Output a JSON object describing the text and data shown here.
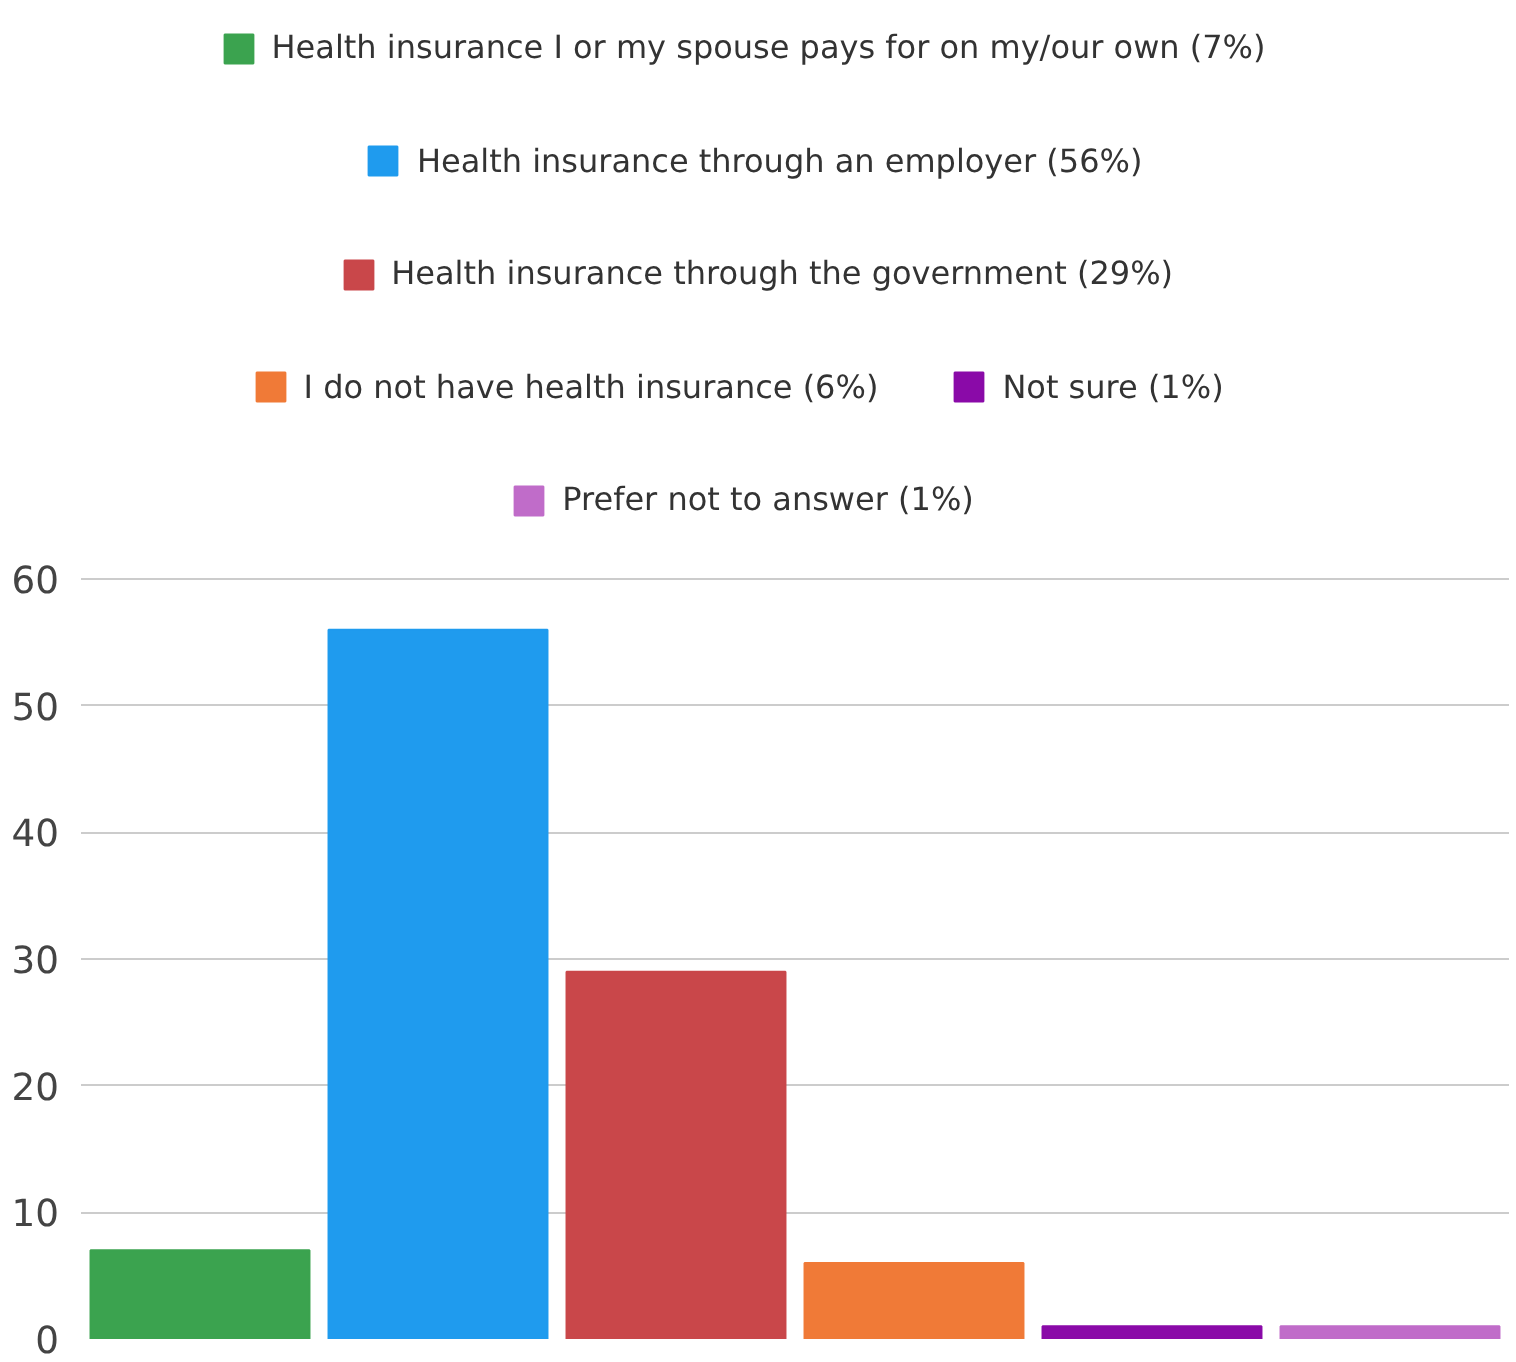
{
  "chart_data": {
    "type": "bar",
    "stacked": true,
    "categories": [
      null,
      null,
      null,
      null,
      null,
      null
    ],
    "series": [
      {
        "name": "Health insurance I or my spouse pays for on my/our own (7%)",
        "color": "#3ba34f",
        "values": [
          7,
          null,
          null,
          null,
          null,
          null
        ]
      },
      {
        "name": "Health insurance through an employer (56%)",
        "color": "#1f9bee",
        "values": [
          null,
          56,
          null,
          null,
          null,
          null
        ]
      },
      {
        "name": "Health insurance through the government (29%)",
        "color": "#c9474a",
        "values": [
          null,
          null,
          29,
          null,
          null,
          null
        ]
      },
      {
        "name": "I do not have health insurance (6%)",
        "color": "#f07a37",
        "values": [
          null,
          null,
          null,
          6,
          null,
          null
        ]
      },
      {
        "name": "Not sure (1%)",
        "color": "#8a0aa8",
        "values": [
          null,
          null,
          null,
          null,
          1,
          null
        ]
      },
      {
        "name": "Prefer not to answer (1%)",
        "color": "#c06cc9",
        "values": [
          null,
          null,
          null,
          null,
          null,
          1
        ]
      }
    ],
    "ylim": [
      0,
      60
    ],
    "yticks": [
      0,
      10,
      20,
      30,
      40,
      50,
      60
    ],
    "grid": "y",
    "legend": "top",
    "tick_labels": "y"
  }
}
